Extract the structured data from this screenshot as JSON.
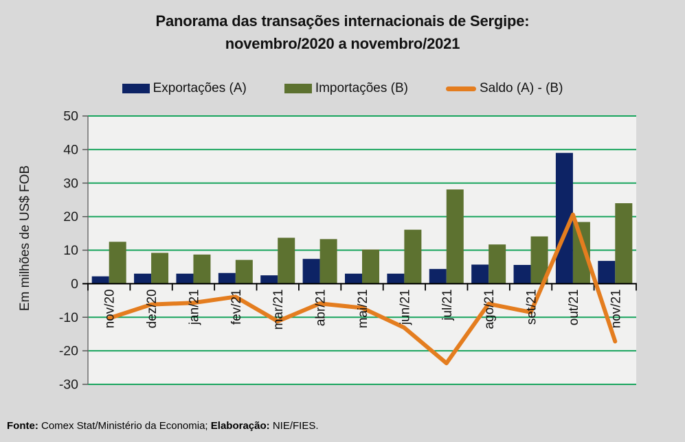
{
  "title": {
    "line1": "Panorama das transações internacionais de Sergipe:",
    "line2": "novembro/2020 a novembro/2021"
  },
  "legend": {
    "items": [
      {
        "label": "Exportações (A)",
        "swatch": "rect",
        "color": "#0D2365"
      },
      {
        "label": "Importações (B)",
        "swatch": "rect",
        "color": "#5D7230"
      },
      {
        "label": "Saldo (A) - (B)",
        "swatch": "line",
        "color": "#E47D1F"
      }
    ]
  },
  "y_axis": {
    "title": "Em milhões de US$ FOB",
    "ticks": [
      50,
      40,
      30,
      20,
      10,
      0,
      -10,
      -20,
      -30
    ]
  },
  "footer": {
    "source_label": "Fonte:",
    "source_text": "Comex Stat/Ministério da Economia;",
    "elaboration_label": "Elaboração:",
    "elaboration_text": "NIE/FIES."
  },
  "chart_data": {
    "type": "bar",
    "title": "Panorama das transações internacionais de Sergipe: novembro/2020 a novembro/2021",
    "xlabel": "",
    "ylabel": "Em milhões de US$ FOB",
    "ylim": [
      -30,
      50
    ],
    "ytick_step": 10,
    "grid": true,
    "grid_color": "#17A45C",
    "plot_bg": "#F1F1F0",
    "page_bg": "#D9D9D9",
    "legend_position": "top",
    "categories": [
      "nov/20",
      "dez/20",
      "jan/21",
      "fev/21",
      "mar/21",
      "abr/21",
      "mai/21",
      "jun/21",
      "jul/21",
      "ago/21",
      "set/21",
      "out/21",
      "nov/21"
    ],
    "series": [
      {
        "name": "Exportações (A)",
        "type": "bar",
        "color": "#0D2365",
        "values": [
          2.2,
          3.0,
          3.0,
          3.2,
          2.5,
          7.4,
          3.0,
          3.0,
          4.4,
          5.7,
          5.6,
          39.0,
          6.8
        ]
      },
      {
        "name": "Importações (B)",
        "type": "bar",
        "color": "#5D7230",
        "values": [
          12.5,
          9.2,
          8.7,
          7.1,
          13.7,
          13.3,
          10.2,
          16.1,
          28.1,
          11.7,
          14.1,
          18.4,
          24.0
        ]
      },
      {
        "name": "Saldo (A) - (B)",
        "type": "line",
        "color": "#E47D1F",
        "values": [
          -10.3,
          -6.2,
          -5.7,
          -3.9,
          -11.2,
          -5.9,
          -7.2,
          -13.1,
          -23.7,
          -6.0,
          -8.5,
          20.6,
          -17.2
        ]
      }
    ]
  }
}
